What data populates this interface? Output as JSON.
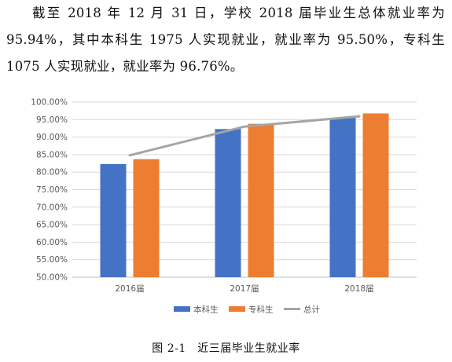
{
  "text": {
    "paragraph": "截至 2018 年 12 月 31 日，学校 2018 届毕业生总体就业率为 95.94%，其中本科生 1975 人实现就业，就业率为 95.50%，专科生 1075 人实现就业，就业率为 96.76%。",
    "caption": "图 2-1　近三届毕业生就业率"
  },
  "colors": {
    "series": [
      "#4472C4",
      "#ED7D31",
      "#A5A5A5"
    ],
    "grid": "#D9D9D9",
    "axis": "#BFBFBF"
  },
  "chart_data": {
    "type": "bar",
    "categories": [
      "2016届",
      "2017届",
      "2018届"
    ],
    "series": [
      {
        "name": "本科生",
        "type": "bar",
        "values": [
          82.3,
          92.3,
          95.5
        ]
      },
      {
        "name": "专科生",
        "type": "bar",
        "values": [
          83.7,
          93.8,
          96.76
        ]
      },
      {
        "name": "总计",
        "type": "line",
        "values": [
          84.8,
          93.0,
          95.94
        ]
      }
    ],
    "ylim": [
      50,
      100
    ],
    "ytick_step": 5,
    "ytick_labels": [
      "50.00%",
      "55.00%",
      "60.00%",
      "65.00%",
      "70.00%",
      "75.00%",
      "80.00%",
      "85.00%",
      "90.00%",
      "95.00%",
      "100.00%"
    ],
    "grid": true,
    "legend_position": "bottom"
  }
}
